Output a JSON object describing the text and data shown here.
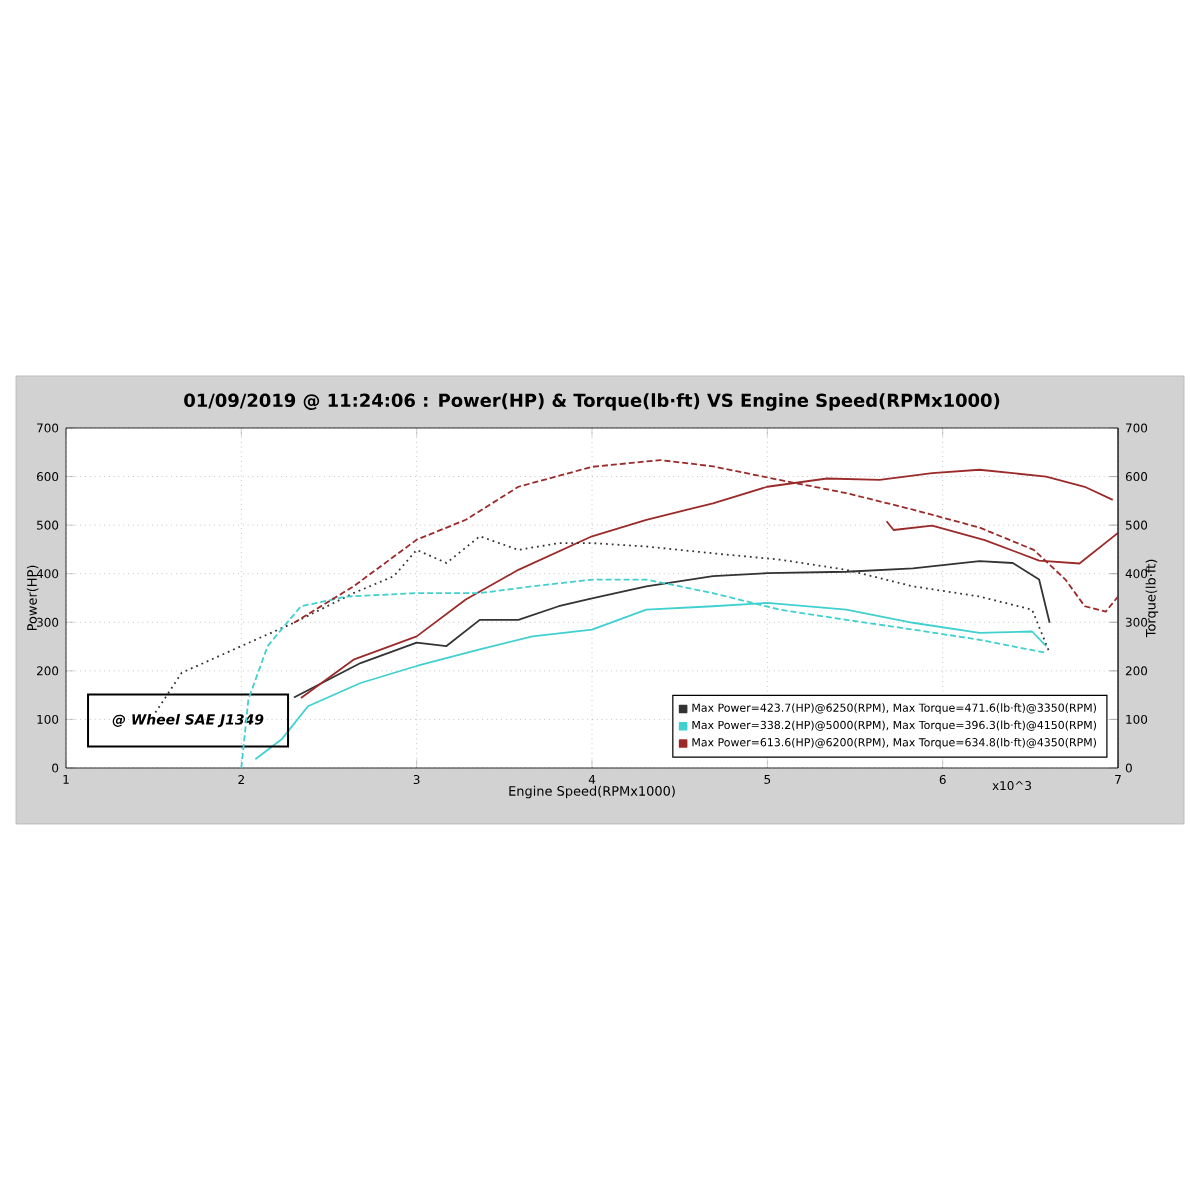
{
  "chart_data": {
    "type": "line",
    "title": "01/09/2019 @ 11:24:06 : Power(HP) & Torque(lb·ft) VS Engine Speed(RPMx1000)",
    "xlabel": "Engine Speed(RPMx1000)",
    "ylabel": "Power(HP)",
    "y2label": "Torque(lb·ft)",
    "xlim": [
      1,
      7
    ],
    "xticks": [
      1,
      2,
      3,
      4,
      5,
      6,
      7
    ],
    "ylim": [
      0,
      700
    ],
    "yticks": [
      0,
      100,
      200,
      300,
      400,
      500,
      600,
      700
    ],
    "y2lim": [
      0,
      700
    ],
    "y2ticks": [
      0,
      100,
      200,
      300,
      400,
      500,
      600,
      700
    ],
    "grid": true,
    "legend": "bottom right",
    "marker": "none",
    "annotations": [
      "@ Wheel SAE J1349",
      "x10^3"
    ],
    "series": [
      {
        "name": "Max Power=423.7(HP)@6250(RPM), Max Torque=471.6(lb·ft)@3350(RPM)",
        "color": "#333333",
        "line_style": "solid",
        "x": [
          2.3,
          2.68,
          3.0,
          3.17,
          3.36,
          3.58,
          3.81,
          4.0,
          4.31,
          4.69,
          5.0,
          5.45,
          5.83,
          6.21,
          6.4,
          6.55,
          6.61
        ],
        "values": [
          145,
          216,
          258,
          251,
          305,
          305,
          333,
          349,
          374,
          395,
          401,
          404,
          411,
          426,
          422,
          388,
          299
        ]
      },
      {
        "name": "Max Power=338.2(HP)@5000(RPM), Max Torque=396.3(lb·ft)@4150(RPM)",
        "color": "#40d0d0",
        "line_style": "solid",
        "x": [
          2.08,
          2.23,
          2.38,
          2.68,
          3.0,
          3.36,
          3.66,
          4.0,
          4.31,
          4.69,
          5.0,
          5.45,
          5.83,
          6.21,
          6.51,
          6.59
        ],
        "values": [
          18,
          59,
          127,
          175,
          210,
          244,
          271,
          285,
          326,
          333,
          340,
          326,
          299,
          278,
          281,
          251
        ]
      },
      {
        "name": "Max Power=613.6(HP)@6200(RPM), Max Torque=634.8(lb·ft)@4350(RPM)",
        "color": "#9b2a2a",
        "line_style": "solid",
        "x": [
          2.34,
          2.64,
          3.0,
          3.28,
          3.58,
          4.0,
          4.31,
          4.69,
          5.0,
          5.34,
          5.64,
          5.94,
          6.21,
          6.59,
          6.81,
          6.97,
          5.75,
          5.68,
          5.72,
          5.94,
          6.24,
          6.55,
          6.78,
          7.0
        ],
        "values": [
          144,
          223,
          271,
          347,
          408,
          477,
          511,
          545,
          579,
          596,
          593,
          607,
          614,
          600,
          579,
          552,
          null,
          508,
          490,
          499,
          469,
          427,
          421,
          484
        ]
      },
      {
        "color": "#333333",
        "line_style": "dotted",
        "axis": "y2",
        "x": [
          1.51,
          1.66,
          2.0,
          2.3,
          2.64,
          2.87,
          3.0,
          3.17,
          3.36,
          3.58,
          3.81,
          4.0,
          4.31,
          4.69,
          5.07,
          5.45,
          5.83,
          6.21,
          6.51,
          6.61
        ],
        "values": [
          114,
          196,
          251,
          299,
          360,
          395,
          449,
          422,
          477,
          449,
          463,
          463,
          456,
          442,
          429,
          408,
          374,
          353,
          326,
          237
        ]
      },
      {
        "color": "#40d0d0",
        "line_style": "dashed",
        "axis": "y2",
        "x": [
          2.0,
          2.04,
          2.15,
          2.34,
          2.6,
          3.0,
          3.36,
          3.66,
          4.0,
          4.31,
          4.69,
          5.07,
          5.45,
          5.83,
          6.21,
          6.59
        ],
        "values": [
          0,
          141,
          251,
          333,
          353,
          360,
          360,
          374,
          388,
          388,
          360,
          326,
          305,
          285,
          264,
          237
        ]
      },
      {
        "color": "#9b2a2a",
        "line_style": "dashed",
        "axis": "y2",
        "x": [
          2.3,
          2.64,
          3.0,
          3.28,
          3.58,
          4.0,
          4.39,
          4.69,
          5.07,
          5.45,
          5.83,
          6.21,
          6.52,
          6.7,
          6.81,
          6.93,
          7.0
        ],
        "values": [
          299,
          374,
          470,
          511,
          579,
          620,
          634,
          621,
          593,
          566,
          532,
          495,
          449,
          388,
          333,
          322,
          353
        ]
      }
    ]
  }
}
